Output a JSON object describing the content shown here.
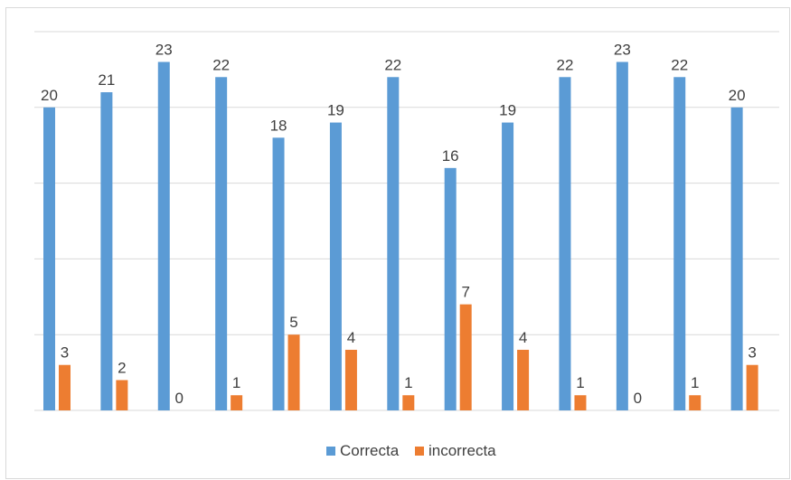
{
  "chart_data": {
    "type": "bar",
    "title": "",
    "xlabel": "",
    "ylabel": "",
    "categories": [
      "",
      "",
      "",
      "",
      "",
      "",
      "",
      "",
      "",
      "",
      "",
      "",
      ""
    ],
    "ylim": [
      0,
      25
    ],
    "grid": true,
    "legend_position": "bottom",
    "series": [
      {
        "name": "Correcta",
        "color": "#5B9BD5",
        "values": [
          20,
          21,
          23,
          22,
          18,
          19,
          22,
          16,
          19,
          22,
          23,
          22,
          20
        ]
      },
      {
        "name": "incorrecta",
        "color": "#ED7D31",
        "values": [
          3,
          2,
          0,
          1,
          5,
          4,
          1,
          7,
          4,
          1,
          0,
          1,
          3
        ]
      }
    ]
  }
}
